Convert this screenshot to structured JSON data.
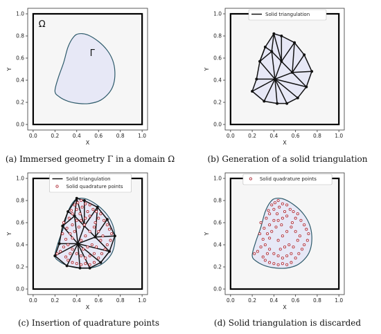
{
  "figure": {
    "captions": [
      "(a) Immersed geometry Γ in a domain Ω",
      "(b) Generation of a solid triangulation",
      "(c) Insertion of quadrature points",
      "(d) Solid triangulation is discarded"
    ]
  },
  "colors": {
    "domain_fill": "#f6f6f6",
    "geometry_fill": "#e7e8f6",
    "boundary": "#2d5a6a",
    "triangulation": "#111111",
    "quad_point": "#b0303a"
  },
  "chart_data": [
    {
      "type": "diagram",
      "panel": "a",
      "xlabel": "X",
      "ylabel": "Y",
      "xlim": [
        -0.05,
        1.05
      ],
      "ylim": [
        -0.05,
        1.05
      ],
      "xticks": [
        "0.0",
        "0.2",
        "0.4",
        "0.6",
        "0.8",
        "1.0"
      ],
      "yticks": [
        "0.0",
        "0.2",
        "0.4",
        "0.6",
        "0.8",
        "1.0"
      ],
      "annotations": [
        "Ω",
        "Γ"
      ],
      "boundary": [
        [
          0.2,
          0.3
        ],
        [
          0.23,
          0.42
        ],
        [
          0.28,
          0.56
        ],
        [
          0.32,
          0.7
        ],
        [
          0.37,
          0.79
        ],
        [
          0.42,
          0.82
        ],
        [
          0.5,
          0.81
        ],
        [
          0.6,
          0.75
        ],
        [
          0.68,
          0.67
        ],
        [
          0.73,
          0.58
        ],
        [
          0.75,
          0.48
        ],
        [
          0.74,
          0.37
        ],
        [
          0.7,
          0.29
        ],
        [
          0.62,
          0.22
        ],
        [
          0.52,
          0.19
        ],
        [
          0.42,
          0.19
        ],
        [
          0.32,
          0.21
        ],
        [
          0.24,
          0.25
        ],
        [
          0.2,
          0.3
        ]
      ]
    },
    {
      "type": "diagram",
      "panel": "b",
      "xlabel": "X",
      "ylabel": "Y",
      "xlim": [
        -0.05,
        1.05
      ],
      "ylim": [
        -0.05,
        1.05
      ],
      "xticks": [
        "0.0",
        "0.2",
        "0.4",
        "0.6",
        "0.8",
        "1.0"
      ],
      "yticks": [
        "0.0",
        "0.2",
        "0.4",
        "0.6",
        "0.8",
        "1.0"
      ],
      "legend": [
        "Solid triangulation"
      ],
      "nodes": [
        [
          0.2,
          0.3
        ],
        [
          0.24,
          0.41
        ],
        [
          0.27,
          0.57
        ],
        [
          0.32,
          0.7
        ],
        [
          0.4,
          0.82
        ],
        [
          0.47,
          0.8
        ],
        [
          0.59,
          0.74
        ],
        [
          0.68,
          0.63
        ],
        [
          0.75,
          0.48
        ],
        [
          0.7,
          0.34
        ],
        [
          0.62,
          0.24
        ],
        [
          0.52,
          0.19
        ],
        [
          0.43,
          0.19
        ],
        [
          0.31,
          0.21
        ],
        [
          0.41,
          0.41
        ],
        [
          0.47,
          0.57
        ],
        [
          0.38,
          0.66
        ],
        [
          0.57,
          0.47
        ]
      ],
      "edges": [
        [
          0,
          1
        ],
        [
          1,
          2
        ],
        [
          2,
          3
        ],
        [
          3,
          4
        ],
        [
          4,
          5
        ],
        [
          5,
          6
        ],
        [
          6,
          7
        ],
        [
          7,
          8
        ],
        [
          8,
          9
        ],
        [
          9,
          10
        ],
        [
          10,
          11
        ],
        [
          11,
          12
        ],
        [
          12,
          13
        ],
        [
          13,
          0
        ],
        [
          14,
          0
        ],
        [
          14,
          1
        ],
        [
          14,
          2
        ],
        [
          14,
          13
        ],
        [
          14,
          12
        ],
        [
          14,
          11
        ],
        [
          14,
          10
        ],
        [
          14,
          9
        ],
        [
          14,
          15
        ],
        [
          14,
          16
        ],
        [
          14,
          17
        ],
        [
          15,
          16
        ],
        [
          16,
          2
        ],
        [
          16,
          3
        ],
        [
          16,
          4
        ],
        [
          15,
          4
        ],
        [
          15,
          5
        ],
        [
          15,
          6
        ],
        [
          15,
          17
        ],
        [
          17,
          6
        ],
        [
          17,
          7
        ],
        [
          17,
          8
        ],
        [
          17,
          9
        ],
        [
          3,
          2
        ]
      ]
    },
    {
      "type": "diagram",
      "panel": "c",
      "xlabel": "X",
      "ylabel": "Y",
      "xlim": [
        -0.05,
        1.05
      ],
      "ylim": [
        -0.05,
        1.05
      ],
      "xticks": [
        "0.0",
        "0.2",
        "0.4",
        "0.6",
        "0.8",
        "1.0"
      ],
      "yticks": [
        "0.0",
        "0.2",
        "0.4",
        "0.6",
        "0.8",
        "1.0"
      ],
      "legend": [
        "Solid triangulation",
        "Solid quadrature points"
      ],
      "points": [
        [
          0.25,
          0.34
        ],
        [
          0.28,
          0.38
        ],
        [
          0.22,
          0.32
        ],
        [
          0.3,
          0.45
        ],
        [
          0.27,
          0.5
        ],
        [
          0.31,
          0.55
        ],
        [
          0.28,
          0.6
        ],
        [
          0.33,
          0.64
        ],
        [
          0.35,
          0.71
        ],
        [
          0.38,
          0.76
        ],
        [
          0.36,
          0.68
        ],
        [
          0.41,
          0.78
        ],
        [
          0.44,
          0.8
        ],
        [
          0.4,
          0.72
        ],
        [
          0.45,
          0.74
        ],
        [
          0.48,
          0.77
        ],
        [
          0.52,
          0.76
        ],
        [
          0.55,
          0.72
        ],
        [
          0.58,
          0.7
        ],
        [
          0.62,
          0.68
        ],
        [
          0.6,
          0.64
        ],
        [
          0.65,
          0.62
        ],
        [
          0.68,
          0.58
        ],
        [
          0.7,
          0.54
        ],
        [
          0.72,
          0.5
        ],
        [
          0.71,
          0.44
        ],
        [
          0.68,
          0.4
        ],
        [
          0.66,
          0.36
        ],
        [
          0.63,
          0.32
        ],
        [
          0.6,
          0.28
        ],
        [
          0.56,
          0.24
        ],
        [
          0.52,
          0.22
        ],
        [
          0.48,
          0.23
        ],
        [
          0.44,
          0.22
        ],
        [
          0.4,
          0.23
        ],
        [
          0.36,
          0.24
        ],
        [
          0.32,
          0.26
        ],
        [
          0.3,
          0.29
        ],
        [
          0.34,
          0.32
        ],
        [
          0.36,
          0.36
        ],
        [
          0.4,
          0.32
        ],
        [
          0.44,
          0.3
        ],
        [
          0.48,
          0.28
        ],
        [
          0.52,
          0.3
        ],
        [
          0.56,
          0.32
        ],
        [
          0.58,
          0.38
        ],
        [
          0.54,
          0.4
        ],
        [
          0.5,
          0.38
        ],
        [
          0.46,
          0.36
        ],
        [
          0.44,
          0.44
        ],
        [
          0.48,
          0.48
        ],
        [
          0.52,
          0.52
        ],
        [
          0.56,
          0.56
        ],
        [
          0.6,
          0.52
        ],
        [
          0.64,
          0.48
        ],
        [
          0.62,
          0.44
        ],
        [
          0.36,
          0.46
        ],
        [
          0.38,
          0.52
        ],
        [
          0.42,
          0.56
        ],
        [
          0.44,
          0.62
        ],
        [
          0.48,
          0.64
        ],
        [
          0.52,
          0.66
        ],
        [
          0.4,
          0.62
        ],
        [
          0.36,
          0.58
        ],
        [
          0.34,
          0.5
        ],
        [
          0.32,
          0.4
        ],
        [
          0.57,
          0.6
        ],
        [
          0.5,
          0.7
        ],
        [
          0.43,
          0.68
        ],
        [
          0.47,
          0.58
        ]
      ],
      "boundary": [
        [
          0.2,
          0.3
        ],
        [
          0.23,
          0.42
        ],
        [
          0.28,
          0.56
        ],
        [
          0.32,
          0.7
        ],
        [
          0.37,
          0.79
        ],
        [
          0.42,
          0.82
        ],
        [
          0.5,
          0.81
        ],
        [
          0.6,
          0.75
        ],
        [
          0.68,
          0.67
        ],
        [
          0.73,
          0.58
        ],
        [
          0.75,
          0.48
        ],
        [
          0.74,
          0.37
        ],
        [
          0.7,
          0.29
        ],
        [
          0.62,
          0.22
        ],
        [
          0.52,
          0.19
        ],
        [
          0.42,
          0.19
        ],
        [
          0.32,
          0.21
        ],
        [
          0.24,
          0.25
        ],
        [
          0.2,
          0.3
        ]
      ],
      "nodes": [
        [
          0.2,
          0.3
        ],
        [
          0.24,
          0.41
        ],
        [
          0.27,
          0.57
        ],
        [
          0.32,
          0.7
        ],
        [
          0.4,
          0.82
        ],
        [
          0.47,
          0.8
        ],
        [
          0.59,
          0.74
        ],
        [
          0.68,
          0.63
        ],
        [
          0.75,
          0.48
        ],
        [
          0.7,
          0.34
        ],
        [
          0.62,
          0.24
        ],
        [
          0.52,
          0.19
        ],
        [
          0.43,
          0.19
        ],
        [
          0.31,
          0.21
        ],
        [
          0.41,
          0.41
        ],
        [
          0.47,
          0.57
        ],
        [
          0.38,
          0.66
        ],
        [
          0.57,
          0.47
        ]
      ],
      "edges": [
        [
          0,
          1
        ],
        [
          1,
          2
        ],
        [
          2,
          3
        ],
        [
          3,
          4
        ],
        [
          4,
          5
        ],
        [
          5,
          6
        ],
        [
          6,
          7
        ],
        [
          7,
          8
        ],
        [
          8,
          9
        ],
        [
          9,
          10
        ],
        [
          10,
          11
        ],
        [
          11,
          12
        ],
        [
          12,
          13
        ],
        [
          13,
          0
        ],
        [
          14,
          0
        ],
        [
          14,
          1
        ],
        [
          14,
          2
        ],
        [
          14,
          13
        ],
        [
          14,
          12
        ],
        [
          14,
          11
        ],
        [
          14,
          10
        ],
        [
          14,
          9
        ],
        [
          14,
          15
        ],
        [
          14,
          16
        ],
        [
          14,
          17
        ],
        [
          15,
          16
        ],
        [
          16,
          2
        ],
        [
          16,
          3
        ],
        [
          16,
          4
        ],
        [
          15,
          4
        ],
        [
          15,
          5
        ],
        [
          15,
          6
        ],
        [
          15,
          17
        ],
        [
          17,
          6
        ],
        [
          17,
          7
        ],
        [
          17,
          8
        ],
        [
          17,
          9
        ],
        [
          3,
          2
        ]
      ]
    },
    {
      "type": "diagram",
      "panel": "d",
      "xlabel": "X",
      "ylabel": "Y",
      "xlim": [
        -0.05,
        1.05
      ],
      "ylim": [
        -0.05,
        1.05
      ],
      "xticks": [
        "0.0",
        "0.2",
        "0.4",
        "0.6",
        "0.8",
        "1.0"
      ],
      "yticks": [
        "0.0",
        "0.2",
        "0.4",
        "0.6",
        "0.8",
        "1.0"
      ],
      "legend": [
        "Solid quadrature points"
      ],
      "boundary": [
        [
          0.2,
          0.3
        ],
        [
          0.23,
          0.42
        ],
        [
          0.28,
          0.56
        ],
        [
          0.32,
          0.7
        ],
        [
          0.37,
          0.79
        ],
        [
          0.42,
          0.82
        ],
        [
          0.5,
          0.81
        ],
        [
          0.6,
          0.75
        ],
        [
          0.68,
          0.67
        ],
        [
          0.73,
          0.58
        ],
        [
          0.75,
          0.48
        ],
        [
          0.74,
          0.37
        ],
        [
          0.7,
          0.29
        ],
        [
          0.62,
          0.22
        ],
        [
          0.52,
          0.19
        ],
        [
          0.42,
          0.19
        ],
        [
          0.32,
          0.21
        ],
        [
          0.24,
          0.25
        ],
        [
          0.2,
          0.3
        ]
      ],
      "points": [
        [
          0.25,
          0.34
        ],
        [
          0.28,
          0.38
        ],
        [
          0.22,
          0.32
        ],
        [
          0.3,
          0.45
        ],
        [
          0.27,
          0.5
        ],
        [
          0.31,
          0.55
        ],
        [
          0.28,
          0.6
        ],
        [
          0.33,
          0.64
        ],
        [
          0.35,
          0.71
        ],
        [
          0.38,
          0.76
        ],
        [
          0.36,
          0.68
        ],
        [
          0.41,
          0.78
        ],
        [
          0.44,
          0.8
        ],
        [
          0.4,
          0.72
        ],
        [
          0.45,
          0.74
        ],
        [
          0.48,
          0.77
        ],
        [
          0.52,
          0.76
        ],
        [
          0.55,
          0.72
        ],
        [
          0.58,
          0.7
        ],
        [
          0.62,
          0.68
        ],
        [
          0.6,
          0.64
        ],
        [
          0.65,
          0.62
        ],
        [
          0.68,
          0.58
        ],
        [
          0.7,
          0.54
        ],
        [
          0.72,
          0.5
        ],
        [
          0.71,
          0.44
        ],
        [
          0.68,
          0.4
        ],
        [
          0.66,
          0.36
        ],
        [
          0.63,
          0.32
        ],
        [
          0.6,
          0.28
        ],
        [
          0.56,
          0.24
        ],
        [
          0.52,
          0.22
        ],
        [
          0.48,
          0.23
        ],
        [
          0.44,
          0.22
        ],
        [
          0.4,
          0.23
        ],
        [
          0.36,
          0.24
        ],
        [
          0.32,
          0.26
        ],
        [
          0.3,
          0.29
        ],
        [
          0.34,
          0.32
        ],
        [
          0.36,
          0.36
        ],
        [
          0.4,
          0.32
        ],
        [
          0.44,
          0.3
        ],
        [
          0.48,
          0.28
        ],
        [
          0.52,
          0.3
        ],
        [
          0.56,
          0.32
        ],
        [
          0.58,
          0.38
        ],
        [
          0.54,
          0.4
        ],
        [
          0.5,
          0.38
        ],
        [
          0.46,
          0.36
        ],
        [
          0.44,
          0.44
        ],
        [
          0.48,
          0.48
        ],
        [
          0.52,
          0.52
        ],
        [
          0.56,
          0.56
        ],
        [
          0.6,
          0.52
        ],
        [
          0.64,
          0.48
        ],
        [
          0.62,
          0.44
        ],
        [
          0.36,
          0.46
        ],
        [
          0.38,
          0.52
        ],
        [
          0.42,
          0.56
        ],
        [
          0.44,
          0.62
        ],
        [
          0.48,
          0.64
        ],
        [
          0.52,
          0.66
        ],
        [
          0.4,
          0.62
        ],
        [
          0.36,
          0.58
        ],
        [
          0.34,
          0.5
        ],
        [
          0.32,
          0.4
        ],
        [
          0.57,
          0.6
        ],
        [
          0.5,
          0.7
        ],
        [
          0.43,
          0.68
        ],
        [
          0.47,
          0.58
        ]
      ]
    }
  ]
}
